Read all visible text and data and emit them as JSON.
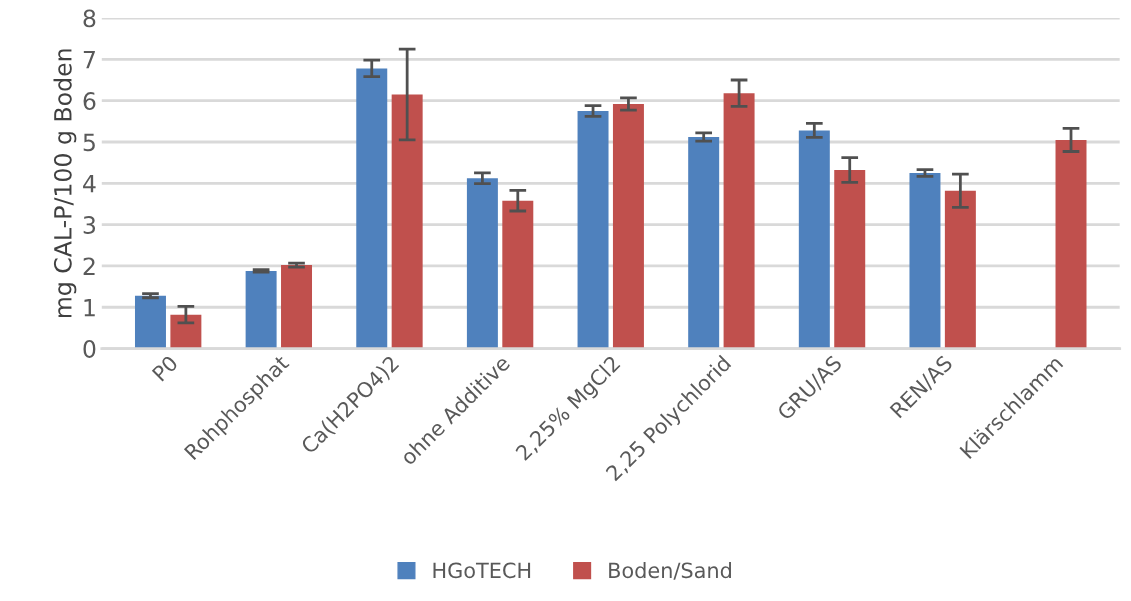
{
  "chart_data": {
    "type": "bar",
    "ylabel": "mg CAL-P/100 g Boden",
    "categories": [
      "P0",
      "Rohphosphat",
      "Ca(H2PO4)2",
      "ohne Additive",
      "2,25% MgCl2",
      "2,25 Polychlorid",
      "GRU/AS",
      "REN/AS",
      "Klärschlamm"
    ],
    "series": [
      {
        "name": "HGoTECH",
        "color": "#4f81bd",
        "values": [
          1.28,
          1.88,
          6.78,
          4.12,
          5.75,
          5.12,
          5.28,
          4.25,
          null
        ],
        "errors": [
          0.05,
          0.03,
          0.2,
          0.13,
          0.13,
          0.1,
          0.17,
          0.08,
          null
        ]
      },
      {
        "name": "Boden/Sand",
        "color": "#c0504d",
        "values": [
          0.82,
          2.02,
          6.15,
          3.58,
          5.92,
          6.18,
          4.32,
          3.82,
          5.05
        ],
        "errors": [
          0.2,
          0.05,
          1.1,
          0.25,
          0.15,
          0.32,
          0.3,
          0.4,
          0.28
        ]
      }
    ],
    "ylim": [
      0,
      8
    ],
    "yticks": [
      0,
      1,
      2,
      3,
      4,
      5,
      6,
      7,
      8
    ],
    "grid": "y",
    "legend": "bottom"
  }
}
